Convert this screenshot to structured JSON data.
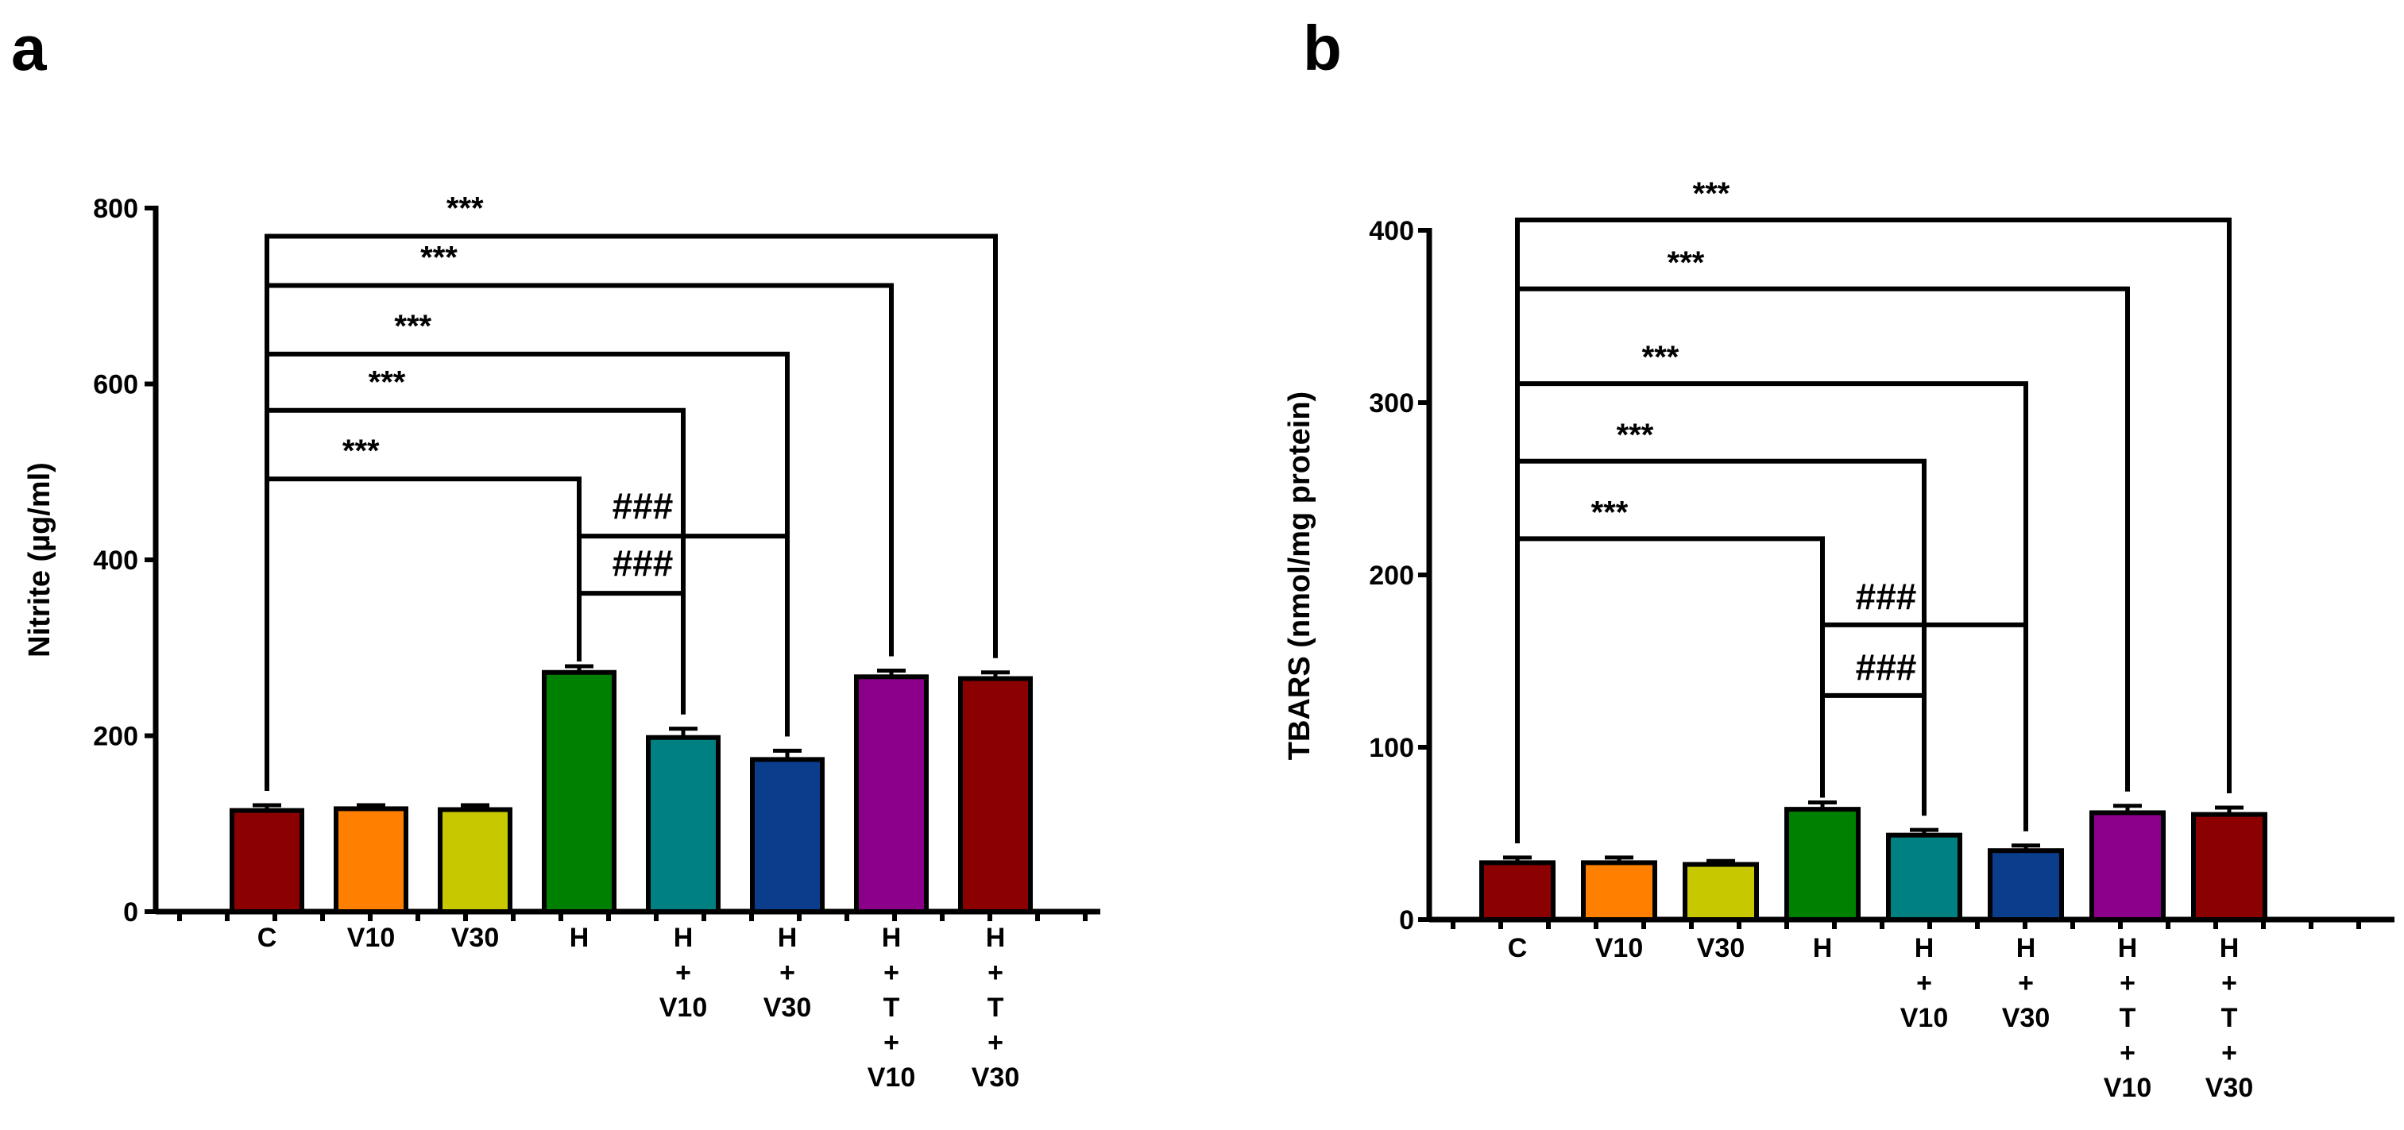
{
  "colors": {
    "C": "#8b0000",
    "V10": "#ff8000",
    "V30": "#c8c800",
    "H": "#008000",
    "H+V10": "#008080",
    "H+V30": "#0a3d8c",
    "H+T+V10": "#8b008b",
    "H+T+V30": "#8b0000"
  },
  "chart_data": [
    {
      "panel": "a",
      "type": "bar",
      "ylabel": "Nitrite (µg/ml)",
      "ylim": [
        0,
        800
      ],
      "yticks": [
        0,
        200,
        400,
        600,
        800
      ],
      "categories": [
        "C",
        "V10",
        "V30",
        "H",
        "H+V10",
        "H+V30",
        "H+T+V10",
        "H+T+V30"
      ],
      "category_labels": [
        [
          "C"
        ],
        [
          "V10"
        ],
        [
          "V30"
        ],
        [
          "H"
        ],
        [
          "H",
          "+",
          "V10"
        ],
        [
          "H",
          "+",
          "V30"
        ],
        [
          "H",
          "+",
          "T",
          "+",
          "V10"
        ],
        [
          "H",
          "+",
          "T",
          "+",
          "V30"
        ]
      ],
      "values": [
        115,
        117,
        116,
        272,
        198,
        173,
        267,
        265
      ],
      "errors": [
        6,
        4,
        5,
        7,
        10,
        10,
        7,
        7
      ],
      "comparisons": [
        {
          "from": 0,
          "to": 3,
          "level": 492,
          "label": "***"
        },
        {
          "from": 0,
          "to": 4,
          "level": 570,
          "label": "***"
        },
        {
          "from": 0,
          "to": 5,
          "level": 634,
          "label": "***"
        },
        {
          "from": 0,
          "to": 6,
          "level": 712,
          "label": "***"
        },
        {
          "from": 0,
          "to": 7,
          "level": 768,
          "label": "***"
        },
        {
          "from": 3,
          "to": 4,
          "level": 362,
          "label": "###"
        },
        {
          "from": 3,
          "to": 5,
          "level": 427,
          "label": "###"
        }
      ]
    },
    {
      "panel": "b",
      "type": "bar",
      "ylabel": "TBARS (nmol/mg protein)",
      "ylim": [
        0,
        400
      ],
      "yticks": [
        0,
        100,
        200,
        300,
        400
      ],
      "categories": [
        "C",
        "V10",
        "V30",
        "H",
        "H+V10",
        "H+V30",
        "H+T+V10",
        "H+T+V30"
      ],
      "category_labels": [
        [
          "C"
        ],
        [
          "V10"
        ],
        [
          "V30"
        ],
        [
          "H"
        ],
        [
          "H",
          "+",
          "V10"
        ],
        [
          "H",
          "+",
          "V30"
        ],
        [
          "H",
          "+",
          "T",
          "+",
          "V10"
        ],
        [
          "H",
          "+",
          "T",
          "+",
          "V30"
        ]
      ],
      "values": [
        33,
        33,
        32,
        64,
        49,
        40,
        62,
        61
      ],
      "errors": [
        3,
        3,
        2,
        4,
        3,
        3,
        4,
        4
      ],
      "comparisons": [
        {
          "from": 0,
          "to": 3,
          "level": 221,
          "label": "***"
        },
        {
          "from": 0,
          "to": 4,
          "level": 266,
          "label": "***"
        },
        {
          "from": 0,
          "to": 5,
          "level": 311,
          "label": "***"
        },
        {
          "from": 0,
          "to": 6,
          "level": 366,
          "label": "***"
        },
        {
          "from": 0,
          "to": 7,
          "level": 406,
          "label": "***"
        },
        {
          "from": 3,
          "to": 4,
          "level": 130,
          "label": "###"
        },
        {
          "from": 3,
          "to": 5,
          "level": 171,
          "label": "###"
        }
      ]
    }
  ]
}
